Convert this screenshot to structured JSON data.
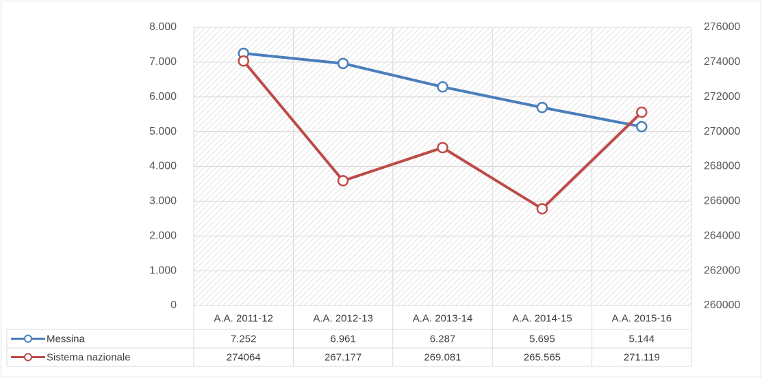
{
  "chart_data": {
    "type": "line",
    "categories": [
      "A.A. 2011-12",
      "A.A. 2012-13",
      "A.A. 2013-14",
      "A.A. 2014-15",
      "A.A. 2015-16"
    ],
    "series": [
      {
        "name": "Messina",
        "color": "#4a7ebb",
        "values": [
          7252,
          6961,
          6287,
          5695,
          5144
        ],
        "value_labels": [
          "7.252",
          "6.961",
          "6.287",
          "5.695",
          "5.144"
        ]
      },
      {
        "name": "Sistema nazionale",
        "color": "#be4b48",
        "axis": "y2",
        "values": [
          274064,
          267177,
          269081,
          265565,
          271119
        ],
        "value_labels": [
          "274064",
          "267.177",
          "269.081",
          "265.565",
          "271.119"
        ]
      }
    ],
    "ylim": [
      0,
      8000
    ],
    "yticks": [
      0,
      {
        "value": 1000,
        "label": "1.000"
      },
      {
        "value": 2000,
        "label": "2.000"
      },
      {
        "value": 3000,
        "label": "3.000"
      },
      {
        "value": 4000,
        "label": "4.000"
      },
      {
        "value": 5000,
        "label": "5.000"
      },
      {
        "value": 6000,
        "label": "6.000"
      },
      {
        "value": 7000,
        "label": "7.000"
      },
      {
        "value": 8000,
        "label": "8.000"
      }
    ],
    "y2lim": [
      260000,
      276000
    ],
    "y2ticks": [
      260000,
      262000,
      264000,
      266000,
      268000,
      270000,
      272000,
      274000,
      276000
    ],
    "grid": true
  }
}
